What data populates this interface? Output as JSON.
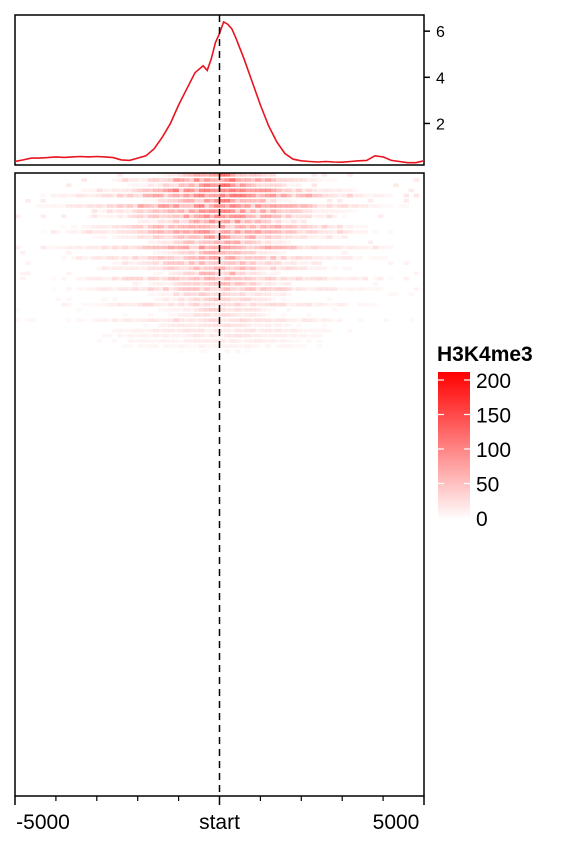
{
  "colors": {
    "profile_line": "#e8141f",
    "heat_high": "#ff0000",
    "heat_low": "#ffffff",
    "center_line": "#000000"
  },
  "chart_data": [
    {
      "type": "line",
      "panel": "average-profile",
      "title": "",
      "xlabel": "",
      "ylabel": "",
      "xlim": [
        -5000,
        5000
      ],
      "ylim": [
        0.2,
        6.7
      ],
      "yticks": [
        2,
        4,
        6
      ],
      "y_tick_labels": [
        "2",
        "4",
        "6"
      ],
      "y_axis_side": "right",
      "grid": false,
      "center_line": {
        "x": 0,
        "style": "dashed"
      },
      "series": [
        {
          "name": "",
          "x": [
            -5000,
            -4800,
            -4600,
            -4400,
            -4200,
            -4000,
            -3800,
            -3600,
            -3400,
            -3200,
            -3000,
            -2800,
            -2600,
            -2400,
            -2200,
            -2000,
            -1800,
            -1600,
            -1400,
            -1200,
            -1000,
            -800,
            -600,
            -400,
            -300,
            -200,
            -100,
            0,
            100,
            200,
            300,
            400,
            600,
            800,
            1000,
            1200,
            1400,
            1600,
            1800,
            2000,
            2200,
            2400,
            2600,
            2800,
            3000,
            3200,
            3400,
            3600,
            3800,
            4000,
            4200,
            4400,
            4600,
            4800,
            5000
          ],
          "y": [
            0.35,
            0.42,
            0.5,
            0.5,
            0.52,
            0.55,
            0.53,
            0.55,
            0.57,
            0.55,
            0.57,
            0.55,
            0.52,
            0.42,
            0.4,
            0.5,
            0.6,
            0.9,
            1.4,
            2.0,
            2.8,
            3.5,
            4.2,
            4.5,
            4.3,
            4.8,
            5.5,
            5.9,
            6.4,
            6.3,
            6.1,
            5.7,
            4.8,
            3.8,
            2.8,
            1.9,
            1.2,
            0.7,
            0.45,
            0.38,
            0.35,
            0.33,
            0.35,
            0.33,
            0.32,
            0.35,
            0.38,
            0.4,
            0.6,
            0.55,
            0.4,
            0.35,
            0.3,
            0.3,
            0.38
          ]
        }
      ]
    },
    {
      "type": "heatmap",
      "panel": "signal-heatmap",
      "title": "",
      "xlabel": "",
      "ylabel": "",
      "xlim": [
        -5000,
        5000
      ],
      "x_tick_labels": [
        "-5000",
        "start",
        "5000"
      ],
      "x_tick_values": [
        -5000,
        0,
        5000
      ],
      "x_minor_ticks": [
        -4000,
        -3000,
        -2000,
        -1000,
        1000,
        2000,
        3000,
        4000
      ],
      "n_regions_shown": 120,
      "signal_rows_fraction": 0.3,
      "center_line": {
        "x": 0,
        "style": "dashed"
      },
      "description_of_pattern": "",
      "legend": {
        "title": "H3K4me3",
        "range": [
          0,
          200
        ],
        "ticks": [
          0,
          50,
          100,
          150,
          200
        ],
        "tick_labels": [
          "0",
          "50",
          "100",
          "150",
          "200"
        ],
        "placement": "right"
      }
    }
  ]
}
